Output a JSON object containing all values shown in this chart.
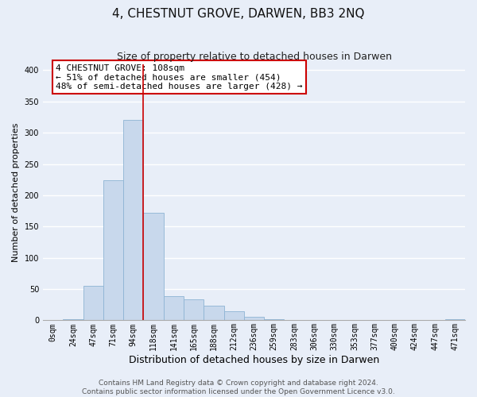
{
  "title": "4, CHESTNUT GROVE, DARWEN, BB3 2NQ",
  "subtitle": "Size of property relative to detached houses in Darwen",
  "xlabel": "Distribution of detached houses by size in Darwen",
  "ylabel": "Number of detached properties",
  "bin_labels": [
    "0sqm",
    "24sqm",
    "47sqm",
    "71sqm",
    "94sqm",
    "118sqm",
    "141sqm",
    "165sqm",
    "188sqm",
    "212sqm",
    "236sqm",
    "259sqm",
    "283sqm",
    "306sqm",
    "330sqm",
    "353sqm",
    "377sqm",
    "400sqm",
    "424sqm",
    "447sqm",
    "471sqm"
  ],
  "bar_heights": [
    0,
    2,
    55,
    224,
    320,
    172,
    39,
    33,
    23,
    14,
    5,
    2,
    1,
    0,
    0,
    0,
    0,
    0,
    0,
    0,
    2
  ],
  "bar_color": "#c8d8ec",
  "bar_edge_color": "#8eb4d4",
  "vline_x_index": 4.5,
  "vline_color": "#cc0000",
  "annotation_text": "4 CHESTNUT GROVE: 108sqm\n← 51% of detached houses are smaller (454)\n48% of semi-detached houses are larger (428) →",
  "annotation_box_color": "#ffffff",
  "annotation_box_edge_color": "#cc0000",
  "ylim": [
    0,
    410
  ],
  "yticks": [
    0,
    50,
    100,
    150,
    200,
    250,
    300,
    350,
    400
  ],
  "footer_line1": "Contains HM Land Registry data © Crown copyright and database right 2024.",
  "footer_line2": "Contains public sector information licensed under the Open Government Licence v3.0.",
  "background_color": "#e8eef8",
  "plot_bg_color": "#e8eef8",
  "grid_color": "#ffffff",
  "title_fontsize": 11,
  "subtitle_fontsize": 9,
  "xlabel_fontsize": 9,
  "ylabel_fontsize": 8,
  "annotation_fontsize": 8,
  "footer_fontsize": 6.5,
  "tick_fontsize": 7
}
